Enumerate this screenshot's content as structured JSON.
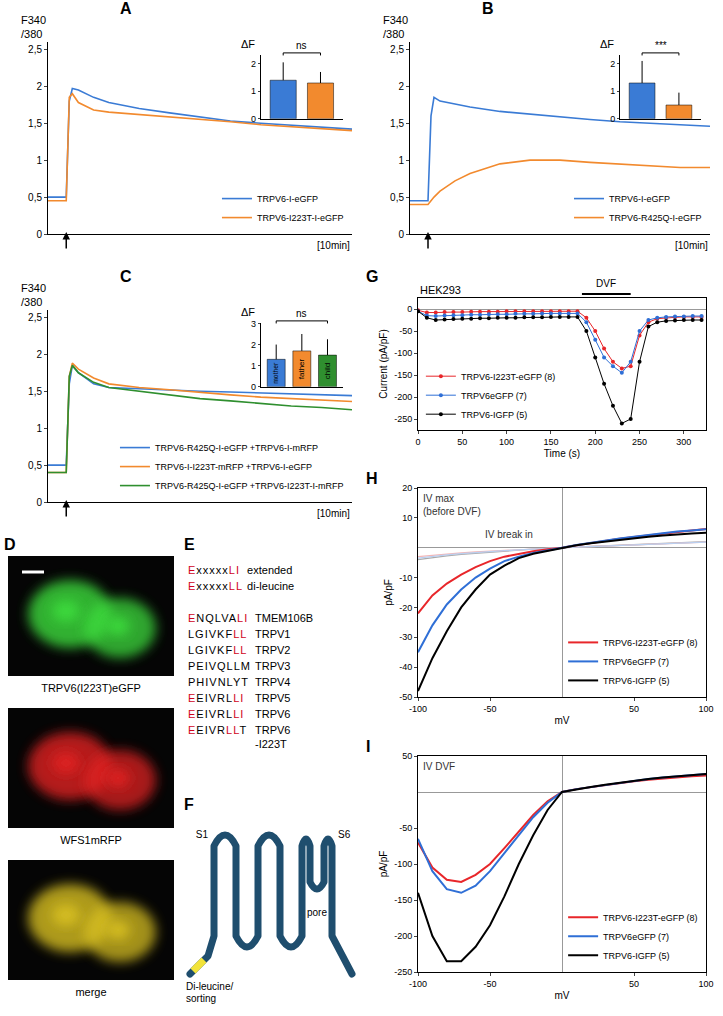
{
  "chart_data": [
    {
      "panel": "A",
      "type": "line",
      "ylabel": "F340\n/380",
      "xlabel": "[10min]",
      "x": [
        0,
        0.5,
        0.6,
        0.7,
        0.8,
        1,
        1.5,
        2,
        3,
        4,
        5,
        6,
        7,
        8,
        9,
        10
      ],
      "xlim": [
        0,
        10
      ],
      "ylim": [
        0,
        2.6
      ],
      "yticks": [
        0,
        {
          "value": 0.5,
          "label": "0,5"
        },
        1,
        {
          "value": 1.5,
          "label": "1,5"
        },
        2,
        {
          "value": 2.5,
          "label": "2,5"
        }
      ],
      "tick_labels": "y",
      "legend": "bottom right",
      "stimulus_x": 0.6,
      "series": [
        {
          "name": "TRPV6-I-eGFP",
          "color": "#3a7bd5",
          "values": [
            0.5,
            0.5,
            0.5,
            1.8,
            1.97,
            1.95,
            1.85,
            1.78,
            1.7,
            1.64,
            1.58,
            1.53,
            1.5,
            1.47,
            1.44,
            1.42
          ]
        },
        {
          "name": "TRPV6-I223T-I-eGFP",
          "color": "#f28a2e",
          "values": [
            0.45,
            0.45,
            0.45,
            1.85,
            1.9,
            1.78,
            1.68,
            1.65,
            1.62,
            1.58,
            1.55,
            1.52,
            1.48,
            1.45,
            1.42,
            1.4
          ]
        }
      ],
      "inset": {
        "type": "bar",
        "title": "ΔF",
        "categories": [
          null,
          null
        ],
        "values": [
          1.4,
          1.3
        ],
        "errors": [
          0.65,
          0.4
        ],
        "colors": [
          "#3a7bd5",
          "#f28a2e"
        ],
        "ylim": [
          0,
          2.3
        ],
        "yticks": [
          0,
          1,
          2
        ],
        "tick_labels": "y",
        "significance": "ns"
      }
    },
    {
      "panel": "B",
      "type": "line",
      "ylabel": "F340\n/380",
      "xlabel": "[10min]",
      "x": [
        0,
        0.5,
        0.6,
        0.7,
        0.8,
        1,
        1.5,
        2,
        3,
        4,
        5,
        6,
        7,
        8,
        9,
        10
      ],
      "xlim": [
        0,
        10
      ],
      "ylim": [
        0,
        2.6
      ],
      "yticks": [
        0,
        {
          "value": 0.5,
          "label": "0,5"
        },
        1,
        {
          "value": 1.5,
          "label": "1,5"
        },
        2,
        {
          "value": 2.5,
          "label": "2,5"
        }
      ],
      "tick_labels": "y",
      "legend": "bottom right",
      "stimulus_x": 0.6,
      "series": [
        {
          "name": "TRPV6-I-eGFP",
          "color": "#3a7bd5",
          "values": [
            0.45,
            0.45,
            0.45,
            1.6,
            1.85,
            1.8,
            1.76,
            1.72,
            1.66,
            1.62,
            1.58,
            1.55,
            1.52,
            1.5,
            1.48,
            1.46
          ]
        },
        {
          "name": "TRPV6-R425Q-I-eGFP",
          "color": "#f28a2e",
          "values": [
            0.4,
            0.4,
            0.4,
            0.45,
            0.5,
            0.58,
            0.72,
            0.82,
            0.95,
            1.0,
            1.0,
            0.97,
            0.95,
            0.93,
            0.9,
            0.9
          ]
        }
      ],
      "inset": {
        "type": "bar",
        "title": "ΔF",
        "categories": [
          null,
          null
        ],
        "values": [
          1.3,
          0.5
        ],
        "errors": [
          0.8,
          0.45
        ],
        "colors": [
          "#3a7bd5",
          "#f28a2e"
        ],
        "ylim": [
          0,
          2.3
        ],
        "yticks": [
          0,
          1,
          2
        ],
        "tick_labels": "y",
        "significance": "***"
      }
    },
    {
      "panel": "C",
      "type": "line",
      "ylabel": "F340\n/380",
      "xlabel": "[10min]",
      "x": [
        0,
        0.5,
        0.6,
        0.7,
        0.8,
        1,
        1.5,
        2,
        3,
        4,
        5,
        6,
        7,
        8,
        9,
        10
      ],
      "xlim": [
        0,
        10
      ],
      "ylim": [
        0,
        2.6
      ],
      "yticks": [
        0,
        {
          "value": 0.5,
          "label": "0,5"
        },
        1,
        {
          "value": 1.5,
          "label": "1,5"
        },
        2,
        {
          "value": 2.5,
          "label": "2,5"
        }
      ],
      "tick_labels": "y",
      "legend": "bottom right",
      "stimulus_x": 0.6,
      "series": [
        {
          "name": "TRPV6-R425Q-I-eGFP +TRPV6-I-mRFP",
          "color": "#3a7bd5",
          "values": [
            0.5,
            0.5,
            0.5,
            1.6,
            1.85,
            1.75,
            1.6,
            1.55,
            1.53,
            1.52,
            1.5,
            1.49,
            1.48,
            1.46,
            1.45,
            1.44
          ]
        },
        {
          "name": "TRPV6-I-I223T-mRFP +TRPV6-I-eGFP",
          "color": "#f28a2e",
          "values": [
            0.4,
            0.4,
            0.4,
            1.7,
            1.88,
            1.8,
            1.68,
            1.6,
            1.55,
            1.52,
            1.48,
            1.45,
            1.42,
            1.4,
            1.38,
            1.36
          ]
        },
        {
          "name": "TRPV6-R425Q-I-eGFP +TRPV6-I223T-I-mRFP",
          "color": "#2f8f2f",
          "values": [
            0.4,
            0.4,
            0.4,
            1.7,
            1.85,
            1.75,
            1.62,
            1.55,
            1.5,
            1.45,
            1.4,
            1.37,
            1.33,
            1.3,
            1.28,
            1.25
          ]
        }
      ],
      "inset": {
        "type": "bar",
        "title": "ΔF",
        "categories": [
          "mother",
          "father",
          "child"
        ],
        "values": [
          1.3,
          1.7,
          1.5
        ],
        "errors": [
          0.7,
          0.8,
          0.75
        ],
        "colors": [
          "#3a7bd5",
          "#f28a2e",
          "#2f8f2f"
        ],
        "ylim": [
          0,
          3
        ],
        "yticks": [
          0,
          1,
          2,
          3
        ],
        "tick_labels": "y",
        "significance": "ns"
      }
    },
    {
      "panel": "G",
      "type": "line",
      "title": "HEK293",
      "xlabel": "Time (s)",
      "ylabel": "Current (pA/pF)",
      "x": [
        0,
        10,
        20,
        30,
        40,
        50,
        60,
        70,
        80,
        90,
        100,
        110,
        120,
        130,
        140,
        150,
        160,
        170,
        180,
        190,
        200,
        210,
        220,
        230,
        240,
        250,
        260,
        270,
        280,
        290,
        300,
        310,
        320
      ],
      "xlim": [
        0,
        325
      ],
      "xticks": [
        0,
        50,
        100,
        150,
        200,
        250,
        300
      ],
      "ylim": [
        -275,
        25
      ],
      "yticks": [
        -250,
        -200,
        -150,
        -100,
        -50,
        0
      ],
      "marker": "circle",
      "legend": "bottom left",
      "period": {
        "text": "DVF",
        "start": 185,
        "end": 240
      },
      "series": [
        {
          "name": "TRPV6-I223T-eGFP (8)",
          "color": "#e8262a",
          "values": [
            -3,
            -8,
            -8,
            -7,
            -7,
            -7,
            -6,
            -6,
            -6,
            -6,
            -5,
            -5,
            -5,
            -5,
            -5,
            -5,
            -5,
            -5,
            -5,
            -20,
            -50,
            -90,
            -120,
            -135,
            -130,
            -60,
            -30,
            -22,
            -20,
            -19,
            -18,
            -18,
            -18
          ]
        },
        {
          "name": "TRPV6eGFP (7)",
          "color": "#2f6fd6",
          "values": [
            -5,
            -15,
            -16,
            -15,
            -14,
            -14,
            -13,
            -13,
            -12,
            -12,
            -12,
            -11,
            -11,
            -11,
            -10,
            -10,
            -10,
            -10,
            -10,
            -30,
            -70,
            -110,
            -130,
            -145,
            -120,
            -50,
            -25,
            -20,
            -18,
            -17,
            -17,
            -16,
            -16
          ]
        },
        {
          "name": "TRPV6-IGFP (5)",
          "color": "#000000",
          "values": [
            -5,
            -20,
            -25,
            -24,
            -23,
            -22,
            -22,
            -21,
            -21,
            -20,
            -20,
            -20,
            -19,
            -19,
            -19,
            -18,
            -18,
            -18,
            -18,
            -50,
            -110,
            -170,
            -220,
            -260,
            -250,
            -120,
            -40,
            -30,
            -27,
            -26,
            -25,
            -25,
            -25
          ]
        }
      ]
    },
    {
      "panel": "H",
      "type": "line",
      "xlabel": "mV",
      "ylabel": "pA/pF",
      "x": [
        -100,
        -90,
        -80,
        -70,
        -60,
        -50,
        -40,
        -30,
        -20,
        -10,
        0,
        10,
        20,
        30,
        40,
        50,
        60,
        70,
        80,
        90,
        100
      ],
      "xlim": [
        -100,
        100
      ],
      "xticks": [
        -100,
        -50,
        50,
        100
      ],
      "ylim": [
        -50,
        20
      ],
      "yticks": [
        -50,
        -40,
        -30,
        -20,
        -10,
        10,
        20
      ],
      "legend": "bottom right",
      "annotations": [
        {
          "text": "IV max\n(before DVF)",
          "x": -98,
          "y": 19
        },
        {
          "text": "IV break in",
          "x": -55,
          "y": 7
        }
      ],
      "series": [
        {
          "name": "TRPV6-I223T-eGFP (8)",
          "color": "#e8262a",
          "values": [
            -22,
            -16,
            -12,
            -9,
            -6.5,
            -4.5,
            -3,
            -2,
            -1.2,
            -0.5,
            0,
            0.8,
            1.6,
            2.3,
            3,
            3.6,
            4.2,
            4.8,
            5.3,
            5.8,
            6.3
          ]
        },
        {
          "name": "TRPV6eGFP (7)",
          "color": "#2f6fd6",
          "values": [
            -35,
            -26,
            -19,
            -14,
            -10,
            -7,
            -4.5,
            -3,
            -1.8,
            -0.8,
            0,
            0.9,
            1.7,
            2.4,
            3.1,
            3.7,
            4.3,
            4.9,
            5.4,
            5.8,
            6.2
          ]
        },
        {
          "name": "TRPV6-IGFP (5)",
          "color": "#000000",
          "values": [
            -48,
            -37,
            -28,
            -20,
            -14,
            -9,
            -6,
            -3.5,
            -2,
            -1,
            0,
            0.8,
            1.5,
            2.1,
            2.7,
            3.2,
            3.7,
            4.1,
            4.5,
            4.8,
            5
          ]
        }
      ],
      "break_in": [
        {
          "color": "#aaaaaa",
          "values": [
            -4,
            -3.3,
            -2.7,
            -2.2,
            -1.8,
            -1.4,
            -1.1,
            -0.8,
            -0.5,
            -0.2,
            0,
            0.2,
            0.4,
            0.6,
            0.8,
            1,
            1.2,
            1.4,
            1.6,
            1.8,
            2
          ]
        },
        {
          "color": "#f4b6b6",
          "values": [
            -3,
            -2.5,
            -2,
            -1.7,
            -1.4,
            -1.1,
            -0.9,
            -0.7,
            -0.5,
            -0.2,
            0,
            0.2,
            0.4,
            0.6,
            0.8,
            1,
            1.2,
            1.3,
            1.5,
            1.7,
            1.9
          ]
        },
        {
          "color": "#b9cff0",
          "values": [
            -3.5,
            -2.9,
            -2.4,
            -2,
            -1.6,
            -1.3,
            -1,
            -0.7,
            -0.4,
            -0.2,
            0,
            0.2,
            0.4,
            0.6,
            0.8,
            1,
            1.2,
            1.4,
            1.5,
            1.7,
            1.9
          ]
        }
      ]
    },
    {
      "panel": "I",
      "type": "line",
      "xlabel": "mV",
      "ylabel": "pA/pF",
      "x": [
        -100,
        -90,
        -80,
        -70,
        -60,
        -50,
        -40,
        -30,
        -20,
        -10,
        0,
        10,
        20,
        30,
        40,
        50,
        60,
        70,
        80,
        90,
        100
      ],
      "xlim": [
        -100,
        100
      ],
      "xticks": [
        -100,
        -50,
        50,
        100
      ],
      "ylim": [
        -250,
        50
      ],
      "yticks": [
        -250,
        -200,
        -150,
        -100,
        -50,
        50
      ],
      "legend": "bottom right",
      "annotations": [
        {
          "text": "IV DVF",
          "x": -98,
          "y": 46
        }
      ],
      "series": [
        {
          "name": "TRPV6-I223T-eGFP (8)",
          "color": "#e8262a",
          "values": [
            -70,
            -105,
            -122,
            -125,
            -115,
            -100,
            -78,
            -55,
            -32,
            -13,
            0,
            4,
            7,
            10,
            12,
            15,
            17,
            19,
            21,
            22,
            23
          ]
        },
        {
          "name": "TRPV6eGFP (7)",
          "color": "#2f6fd6",
          "values": [
            -65,
            -110,
            -135,
            -140,
            -130,
            -110,
            -85,
            -60,
            -35,
            -15,
            0,
            4,
            7,
            10,
            13,
            16,
            18,
            20,
            22,
            24,
            25
          ]
        },
        {
          "name": "TRPV6-IGFP (5)",
          "color": "#000000",
          "values": [
            -140,
            -200,
            -235,
            -235,
            -215,
            -185,
            -145,
            -100,
            -60,
            -25,
            0,
            4,
            7,
            10,
            13,
            16,
            18,
            20,
            22,
            24,
            25
          ]
        }
      ]
    }
  ],
  "figures": {
    "D": {
      "letter": "D",
      "images": [
        {
          "caption": "TRPV6(I223T)eGFP",
          "color": "#3ddc3d"
        },
        {
          "caption": "WFS1mRFP",
          "color": "#e02020"
        },
        {
          "caption": "merge",
          "color": "#d8c020"
        }
      ]
    },
    "E": {
      "letter": "E",
      "motifs": [
        {
          "segments": [
            {
              "text": "E",
              "color": "#d0021b"
            },
            {
              "text": "xxxxx",
              "color": "#000000"
            },
            {
              "text": "LI",
              "color": "#d0021b"
            }
          ],
          "label": "extended"
        },
        {
          "segments": [
            {
              "text": "E",
              "color": "#d0021b"
            },
            {
              "text": "xxxxx",
              "color": "#000000"
            },
            {
              "text": "LL",
              "color": "#d0021b"
            }
          ],
          "label": "di-leucine"
        }
      ],
      "sequences": [
        {
          "segments": [
            {
              "text": "E",
              "color": "#d0021b"
            },
            {
              "text": "NQLVA",
              "color": "#000000"
            },
            {
              "text": "LI",
              "color": "#d0021b"
            }
          ],
          "label": "TMEM106B"
        },
        {
          "segments": [
            {
              "text": "LGIVKF",
              "color": "#000000"
            },
            {
              "text": "LL",
              "color": "#d0021b"
            }
          ],
          "label": "TRPV1"
        },
        {
          "segments": [
            {
              "text": "LGIVKF",
              "color": "#000000"
            },
            {
              "text": "LL",
              "color": "#d0021b"
            }
          ],
          "label": "TRPV2"
        },
        {
          "segments": [
            {
              "text": "PEIVQLLM",
              "color": "#000000"
            }
          ],
          "label": "TRPV3"
        },
        {
          "segments": [
            {
              "text": "PHIVNLYT",
              "color": "#000000"
            }
          ],
          "label": "TRPV4"
        },
        {
          "segments": [
            {
              "text": "E",
              "color": "#d0021b"
            },
            {
              "text": "EIVRL",
              "color": "#000000"
            },
            {
              "text": "LI",
              "color": "#d0021b"
            }
          ],
          "label": "TRPV5"
        },
        {
          "segments": [
            {
              "text": "E",
              "color": "#d0021b"
            },
            {
              "text": "EIVRL",
              "color": "#000000"
            },
            {
              "text": "LI",
              "color": "#d0021b"
            }
          ],
          "label": "TRPV6"
        },
        {
          "segments": [
            {
              "text": "E",
              "color": "#d0021b"
            },
            {
              "text": "EIVR",
              "color": "#000000"
            },
            {
              "text": "LL",
              "color": "#d0021b"
            },
            {
              "text": "T",
              "color": "#000000"
            }
          ],
          "label": "TRPV6\n-I223T"
        }
      ]
    },
    "F": {
      "letter": "F",
      "labels": {
        "start": "S1",
        "end": "S6",
        "pore": "pore",
        "motif": "Di-leucine/\nsorting"
      }
    }
  }
}
